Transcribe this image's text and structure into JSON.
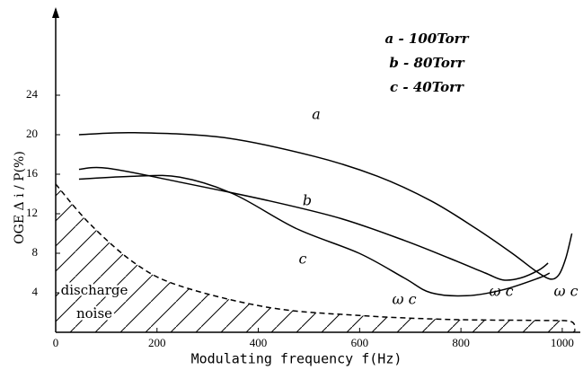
{
  "chart_data": {
    "type": "line",
    "x_label": "Modulating frequency  f(Hz)",
    "y_label": "OGE Δ i / P(%)",
    "xlim": [
      0,
      1025
    ],
    "ylim": [
      0,
      32
    ],
    "xticks": [
      0,
      200,
      400,
      600,
      800,
      1000
    ],
    "yticks": [
      4,
      8,
      12,
      16,
      20,
      24
    ],
    "legend": [
      "a - 100Torr",
      "b - 80Torr",
      "c - 40Torr"
    ],
    "annotations": [
      "ω c",
      "ω c",
      "ω c"
    ],
    "series": [
      {
        "name": "a",
        "color": "#000000",
        "style": "solid",
        "x": [
          46,
          156,
          333,
          511,
          635,
          741,
          830,
          901,
          945,
          975,
          993,
          1007,
          1019
        ],
        "values": [
          20,
          20.2,
          19.7,
          17.8,
          15.8,
          13.3,
          10.5,
          8,
          6.3,
          5.4,
          5.8,
          7.5,
          10
        ]
      },
      {
        "name": "b",
        "color": "#000000",
        "style": "solid",
        "x": [
          46,
          103,
          245,
          422,
          564,
          688,
          777,
          848,
          883,
          918,
          954,
          972
        ],
        "values": [
          16.5,
          16.6,
          15.2,
          13.3,
          11.5,
          9.3,
          7.5,
          6,
          5.3,
          5.5,
          6.3,
          7
        ]
      },
      {
        "name": "c",
        "color": "#000000",
        "style": "solid",
        "x": [
          46,
          156,
          245,
          351,
          475,
          599,
          688,
          741,
          812,
          883,
          954,
          975
        ],
        "values": [
          15.5,
          15.8,
          15.7,
          14,
          10.5,
          8,
          5.5,
          4,
          3.7,
          4.3,
          5.5,
          6
        ]
      },
      {
        "name": "discharge noise",
        "color": "#000000",
        "style": "dashed",
        "x": [
          0,
          67,
          156,
          245,
          422,
          599,
          777,
          954,
          1016,
          1025
        ],
        "values": [
          15,
          11,
          7,
          4.7,
          2.5,
          1.7,
          1.3,
          1.2,
          1.1,
          0.3
        ]
      }
    ]
  }
}
